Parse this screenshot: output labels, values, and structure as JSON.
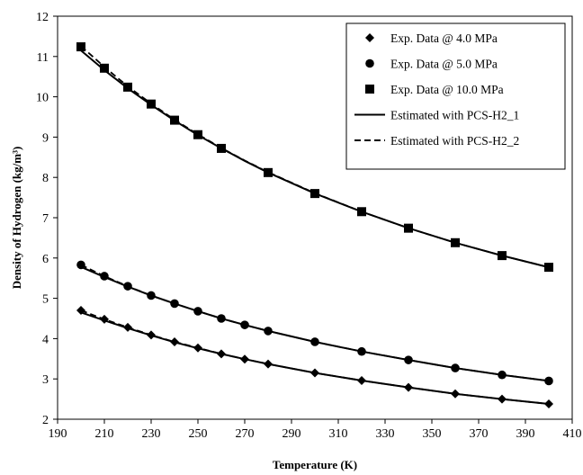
{
  "chart_data": {
    "type": "scatter",
    "xlabel": "Temperature (K)",
    "ylabel": "Density of Hydrogen (kg/m³)",
    "xlim": [
      190,
      410
    ],
    "ylim": [
      2,
      12
    ],
    "xticks": [
      190,
      210,
      230,
      250,
      270,
      290,
      310,
      330,
      350,
      370,
      390,
      410
    ],
    "yticks": [
      2,
      3,
      4,
      5,
      6,
      7,
      8,
      9,
      10,
      11,
      12
    ],
    "grid": false,
    "legend_position": "top-right",
    "x": [
      200,
      210,
      220,
      230,
      240,
      250,
      260,
      270,
      280,
      300,
      320,
      340,
      360,
      380,
      400
    ],
    "series": [
      {
        "name": "Exp. Data @ 4.0 MPa",
        "marker": "diamond",
        "x": [
          200,
          210,
          220,
          230,
          240,
          250,
          260,
          270,
          280,
          300,
          320,
          340,
          360,
          380,
          400
        ],
        "values": [
          4.7,
          4.48,
          4.28,
          4.09,
          3.92,
          3.77,
          3.62,
          3.49,
          3.37,
          3.15,
          2.96,
          2.79,
          2.63,
          2.5,
          2.38
        ]
      },
      {
        "name": "Exp. Data @ 5.0 MPa",
        "marker": "circle",
        "x": [
          200,
          210,
          220,
          230,
          240,
          250,
          260,
          270,
          280,
          300,
          320,
          340,
          360,
          380,
          400
        ],
        "values": [
          5.83,
          5.55,
          5.3,
          5.07,
          4.87,
          4.68,
          4.5,
          4.34,
          4.19,
          3.92,
          3.68,
          3.47,
          3.27,
          3.1,
          2.95
        ]
      },
      {
        "name": "Exp. Data @ 10.0 MPa",
        "marker": "square",
        "x": [
          200,
          210,
          220,
          230,
          240,
          250,
          260,
          280,
          300,
          320,
          340,
          360,
          380,
          400
        ],
        "values": [
          11.24,
          10.71,
          10.24,
          9.82,
          9.42,
          9.06,
          8.72,
          8.12,
          7.6,
          7.15,
          6.74,
          6.38,
          6.06,
          5.77
        ]
      }
    ],
    "fit_lines": [
      {
        "name": "Estimated with PCS-H2_1",
        "style": "solid",
        "curves": [
          [
            4.65,
            4.45,
            4.26,
            4.08,
            3.91,
            3.76,
            3.62,
            3.49,
            3.37,
            3.15,
            2.96,
            2.79,
            2.63,
            2.5,
            2.38
          ],
          [
            5.78,
            5.53,
            5.29,
            5.07,
            4.87,
            4.68,
            4.5,
            4.34,
            4.19,
            3.92,
            3.68,
            3.47,
            3.27,
            3.1,
            2.95
          ],
          [
            11.15,
            10.66,
            10.21,
            9.8,
            9.41,
            9.05,
            8.72,
            8.41,
            8.12,
            7.6,
            7.15,
            6.74,
            6.38,
            6.06,
            5.77
          ]
        ]
      },
      {
        "name": "Estimated with PCS-H2_2",
        "style": "dashed",
        "curves": [
          [
            4.7,
            4.48,
            4.28,
            4.09,
            3.92,
            3.77,
            3.62,
            3.49,
            3.37,
            3.15,
            2.96,
            2.79,
            2.63,
            2.5,
            2.38
          ],
          [
            5.83,
            5.55,
            5.3,
            5.07,
            4.87,
            4.68,
            4.5,
            4.34,
            4.19,
            3.92,
            3.68,
            3.47,
            3.27,
            3.1,
            2.95
          ],
          [
            11.26,
            10.74,
            10.26,
            9.83,
            9.43,
            9.07,
            8.73,
            8.42,
            8.13,
            7.61,
            7.15,
            6.74,
            6.38,
            6.06,
            5.77
          ]
        ]
      }
    ]
  }
}
